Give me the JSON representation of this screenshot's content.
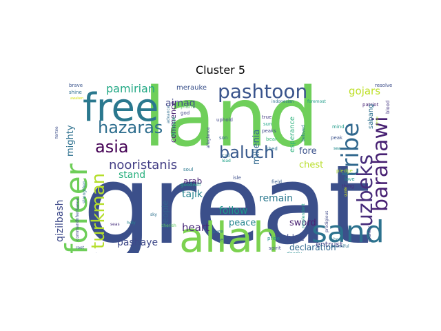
{
  "chart_data": {
    "type": "wordcloud",
    "title": "Cluster 5",
    "background": "#ffffff",
    "words": [
      {
        "text": "great",
        "weight": 100,
        "color": "#3b4f8a"
      },
      {
        "text": "land",
        "weight": 92,
        "color": "#6fcf5a"
      },
      {
        "text": "allah",
        "weight": 58,
        "color": "#7cd250"
      },
      {
        "text": "free",
        "weight": 52,
        "color": "#2a788e"
      },
      {
        "text": "foreer",
        "weight": 50,
        "color": "#6ece58"
      },
      {
        "text": "sand",
        "weight": 45,
        "color": "#2c728e"
      },
      {
        "text": "tribe",
        "weight": 32,
        "color": "#31688e"
      },
      {
        "text": "uzbeks",
        "weight": 30,
        "color": "#472d7b"
      },
      {
        "text": "barahawi",
        "weight": 29,
        "color": "#482173"
      },
      {
        "text": "pashtoon",
        "weight": 27,
        "color": "#3a548c"
      },
      {
        "text": "turkman",
        "weight": 25,
        "color": "#b5de2b"
      },
      {
        "text": "hazaras",
        "weight": 24,
        "color": "#2e6e8e"
      },
      {
        "text": "baluch",
        "weight": 22,
        "color": "#38598c"
      },
      {
        "text": "asia",
        "weight": 22,
        "color": "#440154"
      },
      {
        "text": "nooristanis",
        "weight": 19,
        "color": "#433e85"
      },
      {
        "text": "pamirian",
        "weight": 15,
        "color": "#22a884"
      },
      {
        "text": "qizilbash",
        "weight": 14,
        "color": "#3e4a89"
      },
      {
        "text": "mighty",
        "weight": 12,
        "color": "#2d708e"
      },
      {
        "text": "gojars",
        "weight": 14,
        "color": "#bddf26"
      },
      {
        "text": "aimaq",
        "weight": 14,
        "color": "#404688"
      },
      {
        "text": "stand",
        "weight": 13,
        "color": "#2ab07f"
      },
      {
        "text": "tajik",
        "weight": 14,
        "color": "#25838e"
      },
      {
        "text": "heart",
        "weight": 15,
        "color": "#482878"
      },
      {
        "text": "follow",
        "weight": 14,
        "color": "#1f988b"
      },
      {
        "text": "remain",
        "weight": 13,
        "color": "#2a788e"
      },
      {
        "text": "chest",
        "weight": 13,
        "color": "#b8de29"
      },
      {
        "text": "fore",
        "weight": 13,
        "color": "#3b528b"
      },
      {
        "text": "pashaye",
        "weight": 14,
        "color": "#3e4989"
      },
      {
        "text": "peace",
        "weight": 13,
        "color": "#25858e"
      },
      {
        "text": "sword",
        "weight": 13,
        "color": "#481f70"
      },
      {
        "text": "blue",
        "weight": 12,
        "color": "#3e4a89"
      },
      {
        "text": "entrust",
        "weight": 11,
        "color": "#424086"
      },
      {
        "text": "declaration",
        "weight": 12,
        "color": "#31688e"
      },
      {
        "text": "millenia",
        "weight": 13,
        "color": "#31688e"
      },
      {
        "text": "arab",
        "weight": 12,
        "color": "#482374"
      },
      {
        "text": "people",
        "weight": 11,
        "color": "#34608d"
      },
      {
        "text": "commence",
        "weight": 11,
        "color": "#481d6f"
      },
      {
        "text": "sabang",
        "weight": 10,
        "color": "#2d708e"
      },
      {
        "text": "esperance",
        "weight": 10,
        "color": "#2db27d"
      },
      {
        "text": "merauke",
        "weight": 10,
        "color": "#3b528b"
      },
      {
        "text": "plant",
        "weight": 8,
        "color": "#5ec962"
      },
      {
        "text": "god",
        "weight": 7,
        "color": "#414487"
      },
      {
        "text": "uphold",
        "weight": 7,
        "color": "#404588"
      },
      {
        "text": "true",
        "weight": 7,
        "color": "#443a83"
      },
      {
        "text": "sun",
        "weight": 7,
        "color": "#20a486"
      },
      {
        "text": "peaks",
        "weight": 7,
        "color": "#3f4889"
      },
      {
        "text": "son",
        "weight": 7,
        "color": "#33638d"
      },
      {
        "text": "bear",
        "weight": 7,
        "color": "#35b779"
      },
      {
        "text": "shed",
        "weight": 7,
        "color": "#2c738e"
      },
      {
        "text": "mind",
        "weight": 7,
        "color": "#1f9a8a"
      },
      {
        "text": "peak",
        "weight": 7,
        "color": "#3b528b"
      },
      {
        "text": "indonesian",
        "weight": 6,
        "color": "#2c728e"
      },
      {
        "text": "foremost",
        "weight": 6,
        "color": "#1e9c89"
      },
      {
        "text": "beloved",
        "weight": 6,
        "color": "#2a768e"
      },
      {
        "text": "call",
        "weight": 7,
        "color": "#2e6f8e"
      },
      {
        "text": "allegiance",
        "weight": 6,
        "color": "#3f4788"
      },
      {
        "text": "lead",
        "weight": 6,
        "color": "#1fa187"
      },
      {
        "text": "isle",
        "weight": 7,
        "color": "#3c4f8a"
      },
      {
        "text": "field",
        "weight": 7,
        "color": "#365c8d"
      },
      {
        "text": "sea",
        "weight": 6,
        "color": "#238a8d"
      },
      {
        "text": "soul",
        "weight": 7,
        "color": "#2a788e"
      },
      {
        "text": "goodwill",
        "weight": 7,
        "color": "#22a884"
      },
      {
        "text": "resplendent",
        "weight": 6,
        "color": "#1fa088"
      },
      {
        "text": "pledge",
        "weight": 7,
        "color": "#b0dd2f"
      },
      {
        "text": "thing",
        "weight": 7,
        "color": "#472c7a"
      },
      {
        "text": "love",
        "weight": 7,
        "color": "#1f978b"
      },
      {
        "text": "pride",
        "weight": 7,
        "color": "#21908d"
      },
      {
        "text": "pure",
        "weight": 7,
        "color": "#2c728e"
      },
      {
        "text": "serve",
        "weight": 7,
        "color": "#39568c"
      },
      {
        "text": "spirit",
        "weight": 7,
        "color": "#404688"
      },
      {
        "text": "dearly",
        "weight": 7,
        "color": "#238a8d"
      },
      {
        "text": "prodigious",
        "weight": 6,
        "color": "#3e4989"
      },
      {
        "text": "body",
        "weight": 6,
        "color": "#2a788e"
      },
      {
        "text": "bountiful",
        "weight": 6,
        "color": "#2d708e"
      },
      {
        "text": "country",
        "weight": 6,
        "color": "#424186"
      },
      {
        "text": "patriot",
        "weight": 7,
        "color": "#482475"
      },
      {
        "text": "blood",
        "weight": 7,
        "color": "#453781"
      },
      {
        "text": "resolve",
        "weight": 7,
        "color": "#3d4d8a"
      },
      {
        "text": "brave",
        "weight": 7,
        "color": "#3a548c"
      },
      {
        "text": "shine",
        "weight": 7,
        "color": "#2e6e8e"
      },
      {
        "text": "awaken",
        "weight": 5,
        "color": "#d8e219"
      },
      {
        "text": "fertile",
        "weight": 6,
        "color": "#3d4e8a"
      },
      {
        "text": "advance",
        "weight": 6,
        "color": "#2f6c8e"
      },
      {
        "text": "wholesale",
        "weight": 6,
        "color": "#28ae80"
      },
      {
        "text": "seas",
        "weight": 6,
        "color": "#472f7d"
      },
      {
        "text": "inheritance",
        "weight": 6,
        "color": "#39568c"
      },
      {
        "text": "strengthen",
        "weight": 6,
        "color": "#2b758e"
      },
      {
        "text": "sky",
        "weight": 6,
        "color": "#2d708e"
      },
      {
        "text": "holy",
        "weight": 6,
        "color": "#26828e"
      },
      {
        "text": "command",
        "weight": 6,
        "color": "#3f4788"
      },
      {
        "text": "root",
        "weight": 6,
        "color": "#39568c"
      },
      {
        "text": "cherish",
        "weight": 6,
        "color": "#5ec962"
      },
      {
        "text": "strive",
        "weight": 5,
        "color": "#a8db34"
      },
      {
        "text": "guide",
        "weight": 5,
        "color": "#d0e11c"
      }
    ]
  }
}
